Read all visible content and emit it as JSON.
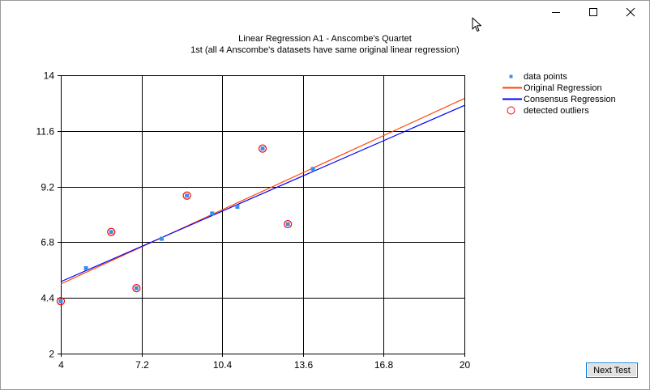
{
  "window": {
    "controls": [
      "minimize-icon",
      "maximize-icon",
      "close-icon"
    ]
  },
  "chart_data": {
    "type": "scatter",
    "title": "Linear Regression A1 - Anscombe's Quartet",
    "subtitle": "1st (all 4 Anscombe's datasets have same original linear regression)",
    "xlabel": "",
    "ylabel": "",
    "xlim": [
      4,
      20
    ],
    "ylim": [
      2,
      14
    ],
    "x_ticks": [
      "4",
      "7.2",
      "10.4",
      "13.6",
      "16.8",
      "20"
    ],
    "y_ticks": [
      "2",
      "4.4",
      "6.8",
      "9.2",
      "11.6",
      "14"
    ],
    "grid": true,
    "legend_position": "right",
    "points": [
      {
        "x": 4,
        "y": 4.26
      },
      {
        "x": 5,
        "y": 5.68
      },
      {
        "x": 6,
        "y": 7.24
      },
      {
        "x": 7,
        "y": 4.82
      },
      {
        "x": 8,
        "y": 6.95
      },
      {
        "x": 9,
        "y": 8.81
      },
      {
        "x": 10,
        "y": 8.04
      },
      {
        "x": 11,
        "y": 8.33
      },
      {
        "x": 12,
        "y": 10.84
      },
      {
        "x": 13,
        "y": 7.58
      },
      {
        "x": 14,
        "y": 9.96
      }
    ],
    "outliers": [
      {
        "x": 4,
        "y": 4.26
      },
      {
        "x": 6,
        "y": 7.24
      },
      {
        "x": 7,
        "y": 4.82
      },
      {
        "x": 9,
        "y": 8.81
      },
      {
        "x": 12,
        "y": 10.84
      },
      {
        "x": 13,
        "y": 7.58
      }
    ],
    "series": [
      {
        "name": "data points",
        "color": "#3d8ee8"
      },
      {
        "name": "Original Regression",
        "color": "#ff4500",
        "line": [
          [
            4,
            5.0
          ],
          [
            20,
            13.0
          ]
        ]
      },
      {
        "name": "Consensus Regression",
        "color": "#0000ff",
        "line": [
          [
            4,
            5.1
          ],
          [
            20,
            12.7
          ]
        ]
      },
      {
        "name": "detected outliers",
        "color": "#ff0000"
      }
    ]
  },
  "buttons": {
    "next_test": "Next Test"
  }
}
